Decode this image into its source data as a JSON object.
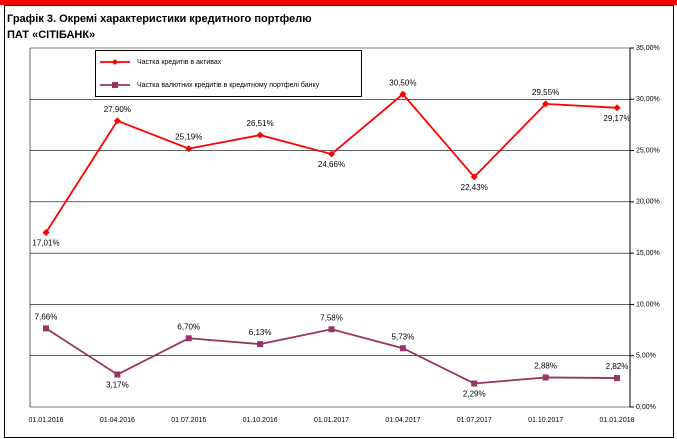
{
  "chart_data": {
    "type": "line",
    "title": "Графік 3. Окремі характеристики кредитного портфелю",
    "subtitle": "ПАТ «СІТІБАНК»",
    "categories": [
      "01.01.2016",
      "01.04.2016",
      "01.07.2016",
      "01.10.2016",
      "01.01.2017",
      "01.04.2017",
      "01.07.2017",
      "01.10.2017",
      "01.01.2018"
    ],
    "series": [
      {
        "name": "Частка кредитів в активах",
        "color": "#ff0000",
        "values": [
          17.01,
          27.9,
          25.19,
          26.51,
          24.66,
          30.5,
          22.43,
          29.55,
          29.17
        ],
        "value_labels": [
          "17,01%",
          "27,90%",
          "25,19%",
          "26,51%",
          "24,66%",
          "30,50%",
          "22,43%",
          "29,55%",
          "29,17%"
        ]
      },
      {
        "name": "Частка валютних кредитів в кредитному портфелі банку",
        "color": "#993366",
        "values": [
          7.66,
          3.17,
          6.7,
          6.13,
          7.58,
          5.73,
          2.29,
          2.88,
          2.82
        ],
        "value_labels": [
          "7,66%",
          "3,17%",
          "6,70%",
          "6,13%",
          "7,58%",
          "5,73%",
          "2,29%",
          "2,88%",
          "2,82%"
        ]
      }
    ],
    "ylim": [
      0,
      35
    ],
    "yticks": [
      {
        "value": 0,
        "label": "0,00%"
      },
      {
        "value": 5,
        "label": "5,00%"
      },
      {
        "value": 10,
        "label": "10,00%"
      },
      {
        "value": 15,
        "label": "15,00%"
      },
      {
        "value": 20,
        "label": "20,00%"
      },
      {
        "value": 25,
        "label": "25,00%"
      },
      {
        "value": 30,
        "label": "30,00%"
      },
      {
        "value": 35,
        "label": "35,00%"
      }
    ],
    "grid": true
  }
}
